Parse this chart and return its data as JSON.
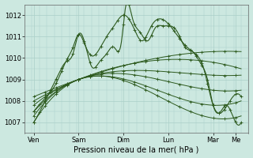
{
  "bg_color": "#cce8e0",
  "grid_color": "#aacfc8",
  "line_color": "#2d5a1e",
  "xlabel": "Pression niveau de la mer( hPa )",
  "ylim": [
    1006.5,
    1012.5
  ],
  "yticks": [
    1007,
    1008,
    1009,
    1010,
    1011,
    1012
  ],
  "xlim": [
    0,
    120
  ],
  "xtick_positions": [
    5,
    29,
    53,
    77,
    101,
    113
  ],
  "xtick_labels": [
    "Ven",
    "Sam",
    "Dim",
    "Lun",
    "Mar",
    "Me"
  ],
  "tick_fontsize": 6,
  "xlabel_fontsize": 7
}
